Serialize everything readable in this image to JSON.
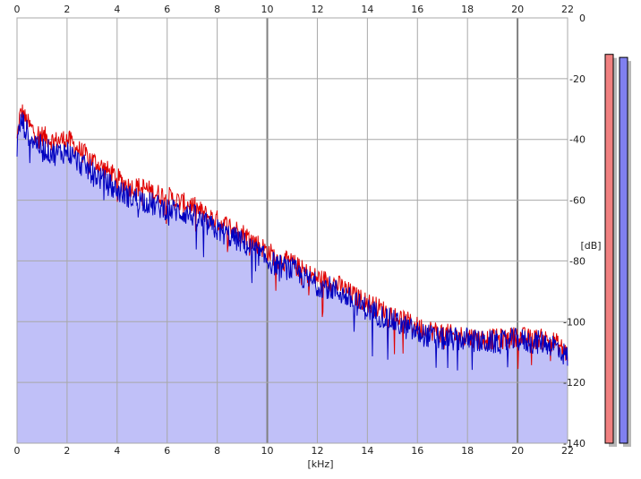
{
  "chart_data": {
    "type": "line",
    "title": "",
    "xlabel": "[kHz]",
    "ylabel": "[dB]",
    "x_ticks": [
      "0",
      "2",
      "4",
      "6",
      "8",
      "10",
      "12",
      "14",
      "16",
      "18",
      "20",
      "22"
    ],
    "y_ticks": [
      "0",
      "-20",
      "-40",
      "-60",
      "-80",
      "-100",
      "-120",
      "-140"
    ],
    "xlim": [
      0,
      22
    ],
    "ylim": [
      -140,
      0
    ],
    "grid": true,
    "colors": {
      "background": "#ffffff",
      "fill": "#c0c0f8",
      "grid": "#a8a8a8",
      "grid_major": "#808080",
      "left_channel": "#e00000",
      "right_channel": "#0000c0",
      "left_meter": "#f08080",
      "right_meter": "#8080f0",
      "meter_shadow": "#b8b8b8"
    },
    "series": [
      {
        "x": [
          0,
          0.1,
          0.2,
          0.35,
          0.5,
          0.75,
          1,
          1.5,
          2,
          2.5,
          3,
          3.5,
          4,
          4.5,
          5,
          5.5,
          6,
          6.5,
          7,
          7.5,
          8,
          8.5,
          9,
          9.5,
          10,
          10.5,
          11,
          11.5,
          12,
          12.5,
          13,
          13.5,
          14,
          14.5,
          15,
          15.5,
          16,
          16.5,
          17,
          17.5,
          18,
          18.5,
          19,
          19.5,
          20,
          20.5,
          21,
          21.5,
          22
        ],
        "values": [
          -40,
          -32,
          -30,
          -33,
          -35,
          -37,
          -38,
          -40,
          -39,
          -43,
          -46,
          -49,
          -52,
          -55,
          -55,
          -57,
          -58,
          -60,
          -61,
          -64,
          -66,
          -68,
          -70,
          -73,
          -76,
          -79,
          -80,
          -83,
          -85,
          -86,
          -88,
          -91,
          -93,
          -95,
          -97,
          -99,
          -101,
          -102,
          -103,
          -104,
          -104,
          -105,
          -105,
          -105,
          -104,
          -105,
          -105,
          -106,
          -110
        ]
      },
      {
        "x": [
          0,
          0.1,
          0.2,
          0.35,
          0.5,
          0.75,
          1,
          1.5,
          2,
          2.5,
          3,
          3.5,
          4,
          4.5,
          5,
          5.5,
          6,
          6.5,
          7,
          7.5,
          8,
          8.5,
          9,
          9.5,
          10,
          10.5,
          11,
          11.5,
          12,
          12.5,
          13,
          13.5,
          14,
          14.5,
          15,
          15.5,
          16,
          16.5,
          17,
          17.5,
          18,
          18.5,
          19,
          19.5,
          20,
          20.5,
          21,
          21.5,
          22
        ],
        "values": [
          -42,
          -35,
          -33,
          -36,
          -38,
          -40,
          -42,
          -44,
          -43,
          -47,
          -50,
          -53,
          -56,
          -58,
          -59,
          -61,
          -62,
          -63,
          -64,
          -67,
          -69,
          -71,
          -73,
          -76,
          -79,
          -81,
          -82,
          -85,
          -87,
          -88,
          -90,
          -93,
          -95,
          -97,
          -99,
          -101,
          -103,
          -104,
          -105,
          -105,
          -105,
          -106,
          -106,
          -106,
          -105,
          -106,
          -106,
          -107,
          -111
        ]
      }
    ],
    "meters": {
      "left_level_db": -12,
      "right_level_db": -13,
      "range_db": [
        -140,
        0
      ]
    }
  }
}
